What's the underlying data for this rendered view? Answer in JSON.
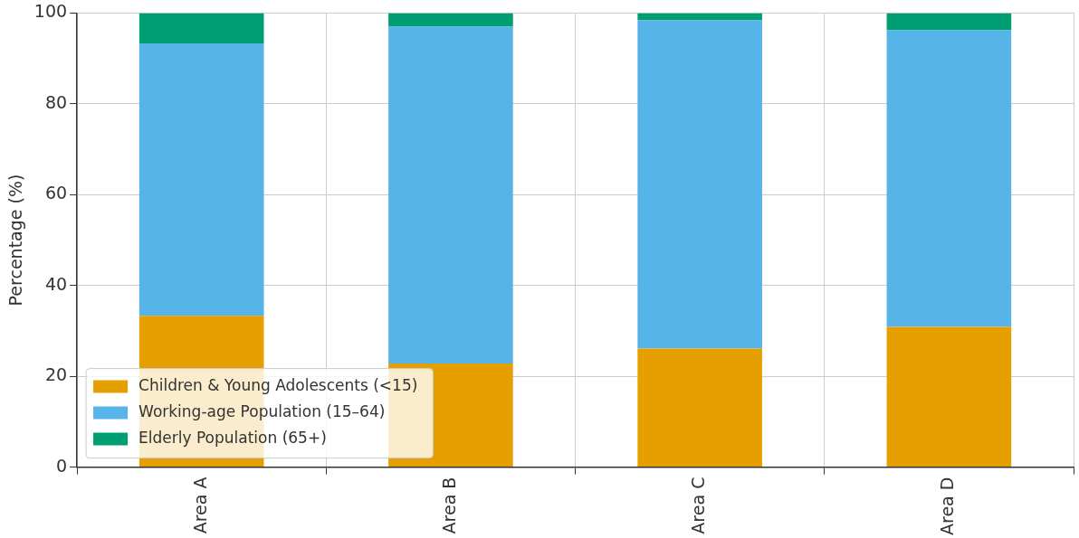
{
  "chart_data": {
    "type": "bar",
    "stacked": true,
    "ylabel": "Percentage (%)",
    "categories": [
      "Area A",
      "Area B",
      "Area C",
      "Area D"
    ],
    "series": [
      {
        "name": "Children & Young Adolescents (<15)",
        "color": "#e69f00",
        "values": [
          33.3,
          22.8,
          26.1,
          30.9
        ]
      },
      {
        "name": "Working-age Population (15–64)",
        "color": "#56b4e9",
        "values": [
          60.0,
          74.2,
          72.3,
          65.3
        ]
      },
      {
        "name": "Elderly Population (65+)",
        "color": "#009e73",
        "values": [
          6.7,
          3.0,
          1.6,
          3.8
        ]
      }
    ],
    "ylim": [
      0,
      100
    ],
    "yticks": [
      0,
      20,
      40,
      60,
      80,
      100
    ],
    "grid": true,
    "legend": "bottom left"
  }
}
